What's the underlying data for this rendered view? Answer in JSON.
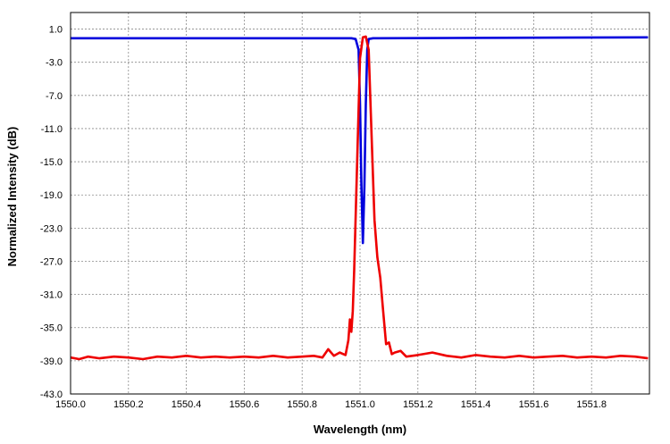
{
  "chart_data": {
    "type": "line",
    "title": "",
    "xlabel": "Wavelength (nm)",
    "ylabel": "Normalized Intensity  (dB)",
    "xlim": [
      1550.0,
      1552.0
    ],
    "ylim": [
      -43.0,
      3.0
    ],
    "x_ticks": [
      "1550.0",
      "1550.2",
      "1550.4",
      "1550.6",
      "1550.8",
      "1551.0",
      "1551.2",
      "1551.4",
      "1551.6",
      "1551.8"
    ],
    "x_tick_values": [
      1550.0,
      1550.2,
      1550.4,
      1550.6,
      1550.8,
      1551.0,
      1551.2,
      1551.4,
      1551.6,
      1551.8
    ],
    "y_ticks": [
      "1.0",
      "-3.0",
      "-7.0",
      "-11.0",
      "-15.0",
      "-19.0",
      "-23.0",
      "-27.0",
      "-31.0",
      "-35.0",
      "-39.0",
      "-43.0"
    ],
    "y_tick_values": [
      1.0,
      -3.0,
      -7.0,
      -11.0,
      -15.0,
      -19.0,
      -23.0,
      -27.0,
      -31.0,
      -35.0,
      -39.0,
      -43.0
    ],
    "grid": true,
    "legend": "none",
    "series": [
      {
        "color": "#0000dd",
        "x": [
          1550.0,
          1550.5,
          1550.97,
          1550.985,
          1550.995,
          1551.0,
          1551.005,
          1551.01,
          1551.015,
          1551.02,
          1551.025,
          1551.03,
          1551.045,
          1551.06,
          1551.5,
          1551.995
        ],
        "y": [
          -0.1,
          -0.1,
          -0.1,
          -0.2,
          -1.5,
          -8.0,
          -18.0,
          -24.8,
          -18.0,
          -8.0,
          -1.5,
          -0.2,
          -0.1,
          -0.1,
          -0.05,
          0.0
        ]
      },
      {
        "color": "#ee0000",
        "x": [
          1550.0,
          1550.03,
          1550.06,
          1550.1,
          1550.15,
          1550.2,
          1550.25,
          1550.3,
          1550.35,
          1550.4,
          1550.45,
          1550.5,
          1550.55,
          1550.6,
          1550.65,
          1550.7,
          1550.75,
          1550.8,
          1550.84,
          1550.87,
          1550.89,
          1550.91,
          1550.93,
          1550.95,
          1550.96,
          1550.965,
          1550.97,
          1550.975,
          1550.98,
          1550.99,
          1551.0,
          1551.01,
          1551.02,
          1551.03,
          1551.04,
          1551.05,
          1551.06,
          1551.07,
          1551.08,
          1551.09,
          1551.1,
          1551.11,
          1551.12,
          1551.14,
          1551.16,
          1551.2,
          1551.25,
          1551.3,
          1551.35,
          1551.4,
          1551.45,
          1551.5,
          1551.55,
          1551.6,
          1551.65,
          1551.7,
          1551.75,
          1551.8,
          1551.85,
          1551.9,
          1551.95,
          1551.995
        ],
        "y": [
          -38.6,
          -38.8,
          -38.5,
          -38.7,
          -38.5,
          -38.6,
          -38.8,
          -38.5,
          -38.6,
          -38.4,
          -38.6,
          -38.5,
          -38.6,
          -38.5,
          -38.6,
          -38.4,
          -38.6,
          -38.5,
          -38.4,
          -38.6,
          -37.6,
          -38.4,
          -38.0,
          -38.3,
          -36.5,
          -34.0,
          -35.5,
          -33.0,
          -28.0,
          -15.0,
          -2.5,
          0.0,
          0.1,
          -1.5,
          -12.0,
          -22.0,
          -26.5,
          -29.0,
          -33.0,
          -37.0,
          -36.8,
          -38.2,
          -38.0,
          -37.8,
          -38.5,
          -38.3,
          -38.0,
          -38.4,
          -38.6,
          -38.3,
          -38.5,
          -38.6,
          -38.4,
          -38.6,
          -38.5,
          -38.4,
          -38.6,
          -38.5,
          -38.6,
          -38.4,
          -38.5,
          -38.7
        ]
      }
    ]
  }
}
